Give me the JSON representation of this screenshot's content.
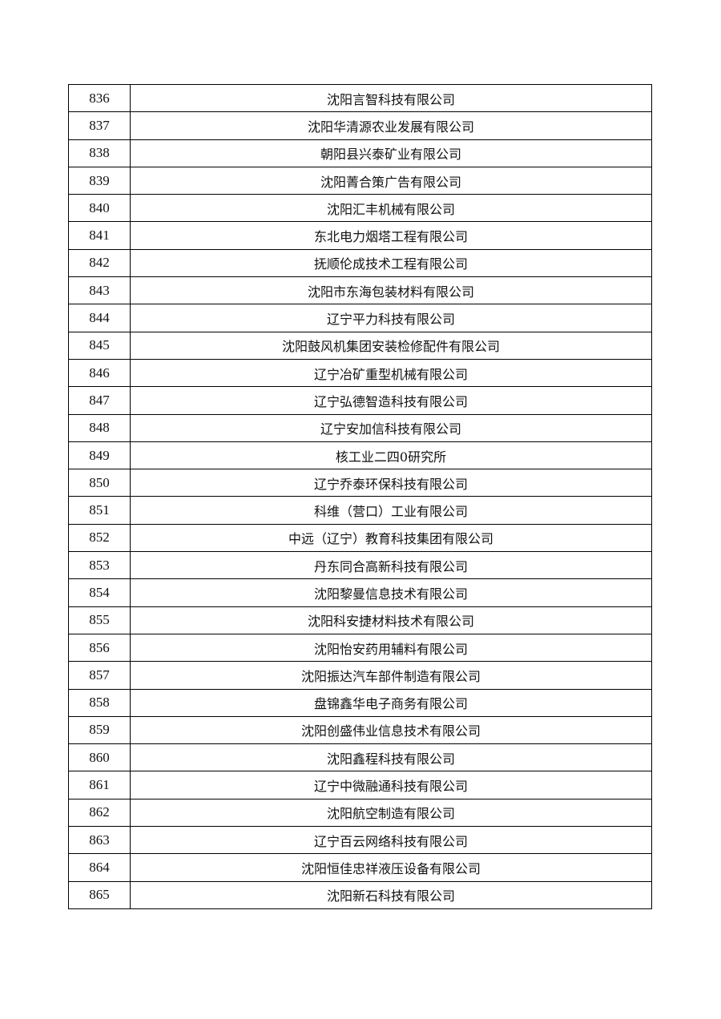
{
  "table": {
    "rows": [
      [
        836,
        "沈阳言智科技有限公司"
      ],
      [
        837,
        "沈阳华清源农业发展有限公司"
      ],
      [
        838,
        "朝阳县兴泰矿业有限公司"
      ],
      [
        839,
        "沈阳菁合策广告有限公司"
      ],
      [
        840,
        "沈阳汇丰机械有限公司"
      ],
      [
        841,
        "东北电力烟塔工程有限公司"
      ],
      [
        842,
        "抚顺伦成技术工程有限公司"
      ],
      [
        843,
        "沈阳市东海包装材料有限公司"
      ],
      [
        844,
        "辽宁平力科技有限公司"
      ],
      [
        845,
        "沈阳鼓风机集团安装检修配件有限公司"
      ],
      [
        846,
        "辽宁冶矿重型机械有限公司"
      ],
      [
        847,
        "辽宁弘德智造科技有限公司"
      ],
      [
        848,
        "辽宁安加信科技有限公司"
      ],
      [
        849,
        "核工业二四0研究所"
      ],
      [
        850,
        "辽宁乔泰环保科技有限公司"
      ],
      [
        851,
        "科维（营口）工业有限公司"
      ],
      [
        852,
        "中远（辽宁）教育科技集团有限公司"
      ],
      [
        853,
        "丹东同合高新科技有限公司"
      ],
      [
        854,
        "沈阳黎曼信息技术有限公司"
      ],
      [
        855,
        "沈阳科安捷材料技术有限公司"
      ],
      [
        856,
        "沈阳怡安药用辅料有限公司"
      ],
      [
        857,
        "沈阳振达汽车部件制造有限公司"
      ],
      [
        858,
        "盘锦鑫华电子商务有限公司"
      ],
      [
        859,
        "沈阳创盛伟业信息技术有限公司"
      ],
      [
        860,
        "沈阳鑫程科技有限公司"
      ],
      [
        861,
        "辽宁中微融通科技有限公司"
      ],
      [
        862,
        "沈阳航空制造有限公司"
      ],
      [
        863,
        "辽宁百云网络科技有限公司"
      ],
      [
        864,
        "沈阳恒佳忠祥液压设备有限公司"
      ],
      [
        865,
        "沈阳新石科技有限公司"
      ]
    ]
  }
}
